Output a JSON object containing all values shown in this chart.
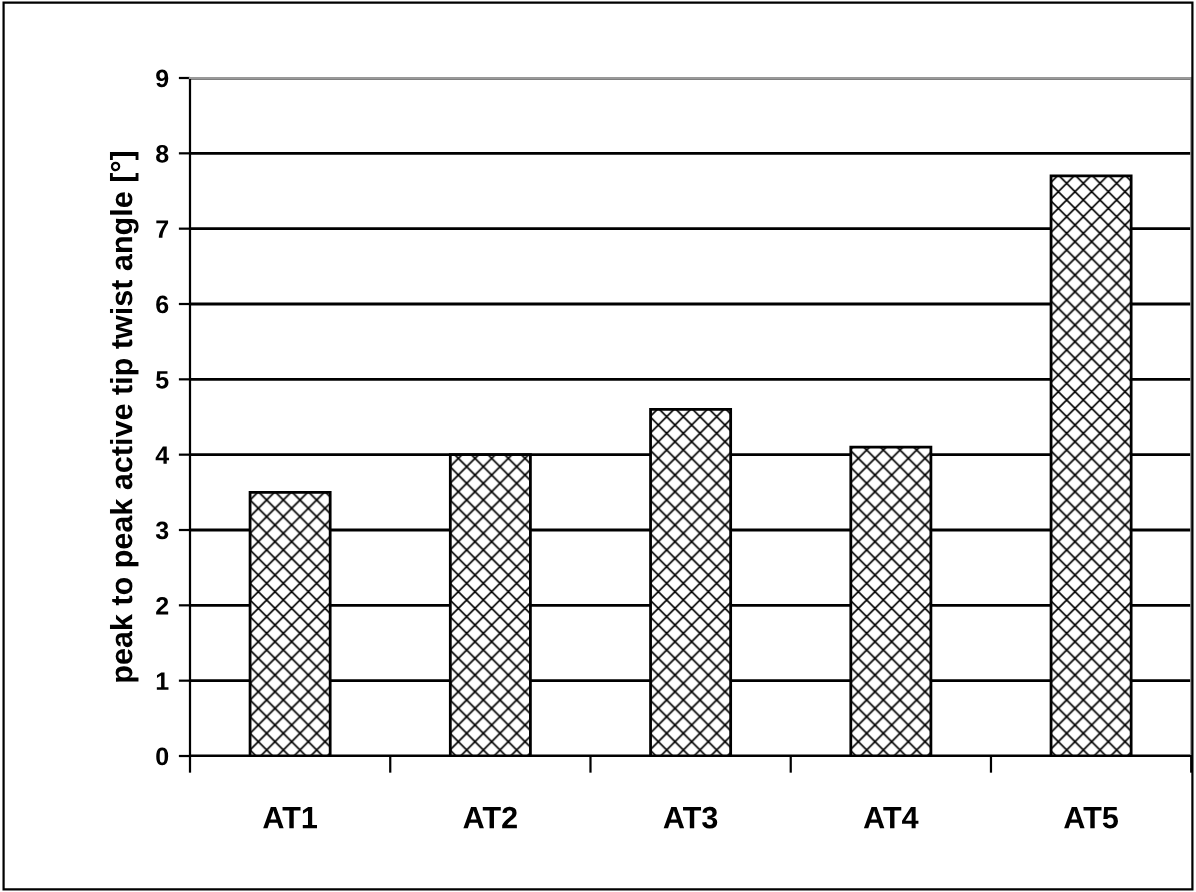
{
  "chart_data": {
    "type": "bar",
    "ylabel": "peak to peak active tip twist angle [°]",
    "categories": [
      "AT1",
      "AT2",
      "AT3",
      "AT4",
      "AT5"
    ],
    "values": [
      3.5,
      4.0,
      4.6,
      4.1,
      7.7
    ],
    "color": "#000000",
    "ylim": [
      0,
      9
    ],
    "yticks": [
      0,
      1,
      2,
      3,
      4,
      5,
      6,
      7,
      8,
      9
    ],
    "grid": "y"
  }
}
